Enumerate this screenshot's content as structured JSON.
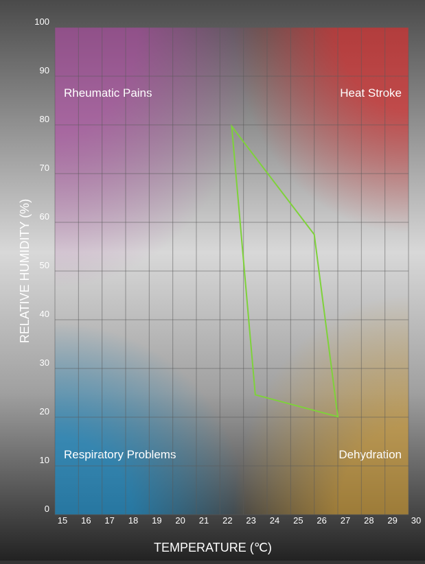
{
  "chart_data": {
    "type": "line",
    "xlabel": "TEMPERATURE (℃)",
    "ylabel": "RELATIVE HUMIDITY (%)",
    "annotations": [
      "Rheumatic Pains",
      "Heat Stroke",
      "Respiratory Problems",
      "Dehydration"
    ],
    "series": [
      {
        "color": "#7ed23a",
        "x": [
          22.5,
          26.0,
          27.0,
          23.5
        ],
        "y": [
          79.7,
          57.5,
          20.1,
          24.6
        ]
      }
    ],
    "xlim": [
      15,
      30
    ],
    "xticks": [
      15,
      16,
      17,
      18,
      19,
      20,
      21,
      22,
      23,
      24,
      25,
      26,
      27,
      28,
      29,
      30
    ],
    "ylim": [
      0,
      100
    ],
    "yticks": [
      0,
      10,
      20,
      30,
      40,
      50,
      60,
      70,
      80,
      90,
      100
    ],
    "grid": true
  }
}
